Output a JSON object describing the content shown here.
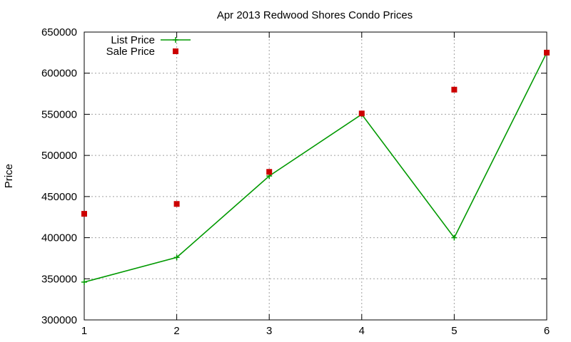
{
  "chart_data": {
    "type": "line",
    "title": "Apr 2013 Redwood Shores Condo Prices",
    "xlabel": "",
    "ylabel": "Price",
    "x": [
      1,
      2,
      3,
      4,
      5,
      6
    ],
    "xlim": [
      1,
      6
    ],
    "ylim": [
      300000,
      650000
    ],
    "xticks": [
      "1",
      "2",
      "3",
      "4",
      "5",
      "6"
    ],
    "yticks": [
      "300000",
      "350000",
      "400000",
      "450000",
      "500000",
      "550000",
      "600000",
      "650000"
    ],
    "grid": true,
    "legend_position": "top-left",
    "series": [
      {
        "name": "List Price",
        "style": "line-with-plus-markers",
        "color": "#009900",
        "values": [
          346000,
          376000,
          475000,
          550000,
          400000,
          625000
        ]
      },
      {
        "name": "Sale Price",
        "style": "square-markers",
        "color": "#cc0000",
        "values": [
          429000,
          441000,
          480000,
          551000,
          580000,
          625000
        ]
      }
    ]
  }
}
